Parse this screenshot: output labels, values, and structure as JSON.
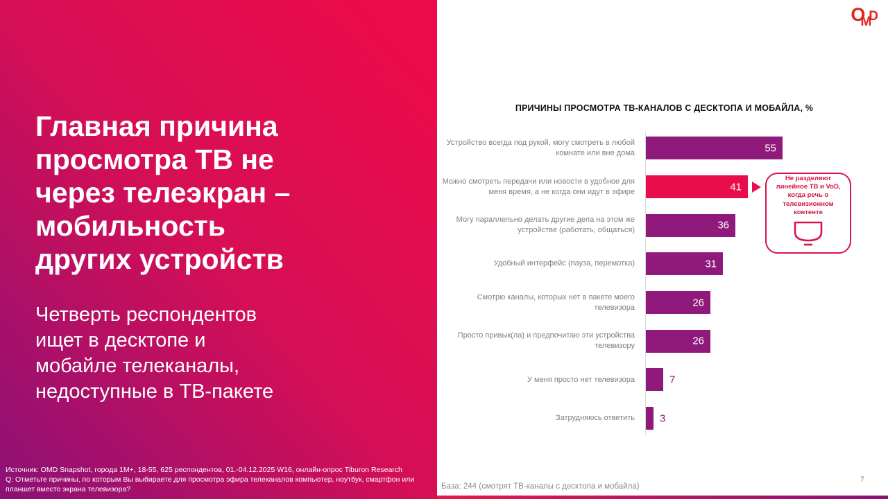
{
  "slide": {
    "title": "Главная причина просмотра ТВ не через телеэкран – мобильность других устройств",
    "title_lines": [
      "Главная причина",
      "просмотра ТВ не",
      "через телеэкран –",
      "мобильность",
      "других устройств"
    ],
    "subtitle_lines": [
      "Четверть респондентов",
      "ищет в десктопе и",
      "мобайле телеканалы,",
      "недоступные в ТВ-пакете"
    ],
    "source": "Источник: OMD Snapshot, города 1М+, 18-55, 625  респондентов, 01.-04.12.2025 W16, онлайн-опрос Tiburon Research",
    "question": "Q: Отметьте причины, по которым Вы выбираете для просмотра эфира телеканалов компьютер, ноутбук, смартфон или планшет вместо экрана телевизора?",
    "page_number": "7",
    "logo": {
      "letter_o": "O",
      "letter_m": "M",
      "letter_d": "D"
    }
  },
  "chart_data": {
    "type": "bar",
    "orientation": "horizontal",
    "title": "ПРИЧИНЫ ПРОСМОТРА ТВ-КАНАЛОВ С ДЕСКТОПА И МОБАЙЛА, %",
    "categories": [
      "Устройство всегда под рукой, могу смотреть в любой комнате или вне дома",
      "Можно смотреть передачи или новости в удобное для меня время, а не когда они идут в эфире",
      "Могу параллельно делать другие дела на этом же устройстве (работать, общаться)",
      "Удобный интерфейс (пауза, перемотка)",
      "Смотрю каналы, которых нет в пакете моего телевизора",
      "Просто привык(ла) и предпочитаю эти устройства телевизору",
      "У меня просто нет телевизора",
      "Затрудняюсь ответить"
    ],
    "values": [
      55,
      41,
      36,
      31,
      26,
      26,
      7,
      3
    ],
    "xlim": [
      0,
      60
    ],
    "grid": false,
    "legend": false,
    "highlight_index": 1,
    "base_note": "База: 244 (смотрят ТВ-каналы с десктопа и мобайла)",
    "callout": {
      "text": "Не разделяют линейное ТВ и VoD, когда речь о телевизионном контенте",
      "icon": "tv-icon"
    },
    "colors": {
      "bar": "#901a7b",
      "bar_highlight": "#e90d4e",
      "value_inside": "#ffffff",
      "value_outside": "#901a7b",
      "category_label": "#7f7f7f",
      "callout_red": "#d7134a",
      "panel_gradient_start": "#ec0b4c",
      "panel_gradient_end": "#8c1076"
    }
  }
}
